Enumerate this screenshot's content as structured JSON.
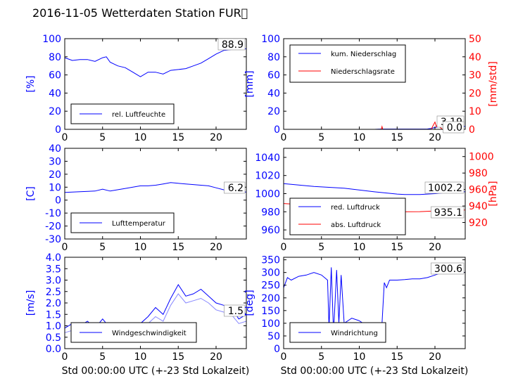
{
  "title": "2016-11-05 Wetterdaten Station FUR\u0000",
  "colors": {
    "blue": "#0000ff",
    "red": "#ff0000",
    "light_blue": "#8888ff",
    "axis": "#000000"
  },
  "chart_data": [
    {
      "type": "line",
      "xlim": [
        0,
        24
      ],
      "ylim": [
        0,
        100
      ],
      "x_ticks": [
        0,
        5,
        10,
        15,
        20
      ],
      "y_ticks": [
        0,
        20,
        40,
        60,
        80,
        100
      ],
      "ylabel": "[%]",
      "xlabel": "",
      "legend": [
        "rel. Luftfeuchte"
      ],
      "legend_position": "lower-left",
      "last_value_label": "88.9",
      "series": [
        {
          "name": "rel. Luftfeuchte",
          "color": "#0000ff",
          "x": [
            0,
            1,
            2,
            3,
            4,
            5,
            5.5,
            6,
            7,
            8,
            9,
            10,
            11,
            12,
            13,
            14,
            15,
            16,
            17,
            18,
            19,
            20,
            21,
            22,
            23,
            24
          ],
          "y": [
            79,
            76,
            77,
            77,
            75,
            79,
            80,
            74,
            70,
            68,
            63,
            58,
            63,
            63,
            61,
            65,
            66,
            67,
            70,
            73,
            78,
            83,
            87,
            88,
            88,
            88.9
          ]
        }
      ]
    },
    {
      "type": "line",
      "xlim": [
        0,
        24
      ],
      "ylim": [
        0,
        100
      ],
      "ylim_right": [
        0,
        50
      ],
      "x_ticks": [
        0,
        5,
        10,
        15,
        20
      ],
      "y_ticks": [
        0,
        20,
        40,
        60,
        80,
        100
      ],
      "y_ticks_right": [
        0,
        10,
        20,
        30,
        40,
        50
      ],
      "ylabel": "[mm]",
      "ylabel_right": "[mm/std]",
      "xlabel": "",
      "legend": [
        "kum. Niederschlag",
        "Niederschlagsrate"
      ],
      "legend_position": "upper-left",
      "last_value_labels": [
        "3.19",
        "0.0"
      ],
      "series": [
        {
          "name": "kum. Niederschlag",
          "color": "#0000ff",
          "axis": "left",
          "x": [
            0,
            12,
            12.5,
            13,
            19,
            19.5,
            20,
            20.5,
            21,
            24
          ],
          "y": [
            0,
            0,
            0.2,
            0.3,
            0.4,
            1.0,
            2.0,
            2.8,
            3.1,
            3.19
          ]
        },
        {
          "name": "Niederschlagsrate",
          "color": "#ff0000",
          "axis": "right",
          "x": [
            0,
            12.9,
            13,
            13.1,
            19.5,
            19.8,
            20.0,
            20.2,
            20.4,
            20.7,
            21,
            24
          ],
          "y": [
            0,
            0,
            1.5,
            0,
            0,
            2.5,
            4.0,
            1.5,
            3.0,
            1.0,
            0,
            0
          ]
        }
      ]
    },
    {
      "type": "line",
      "xlim": [
        0,
        24
      ],
      "ylim": [
        -30,
        40
      ],
      "x_ticks": [
        0,
        5,
        10,
        15,
        20
      ],
      "y_ticks": [
        -30,
        -20,
        -10,
        0,
        10,
        20,
        30,
        40
      ],
      "ylabel": "[C]",
      "xlabel": "",
      "legend": [
        "Lufttemperatur"
      ],
      "legend_position": "lower-left",
      "last_value_label": "6.2",
      "series": [
        {
          "name": "Lufttemperatur",
          "color": "#0000ff",
          "x": [
            0,
            2,
            4,
            5,
            6,
            8,
            10,
            11,
            12,
            13,
            14,
            15,
            16,
            17,
            18,
            19,
            20,
            21,
            22,
            24
          ],
          "y": [
            6,
            6.5,
            7,
            8.5,
            7,
            9,
            11,
            11,
            11.5,
            12.5,
            13.5,
            13,
            12.5,
            12,
            11.5,
            11,
            9.5,
            8,
            7,
            6.2
          ]
        }
      ]
    },
    {
      "type": "line",
      "xlim": [
        0,
        24
      ],
      "ylim": [
        950,
        1050
      ],
      "ylim_right": [
        900,
        1010
      ],
      "x_ticks": [
        0,
        5,
        10,
        15,
        20
      ],
      "y_ticks": [
        960,
        980,
        1000,
        1020,
        1040
      ],
      "y_ticks_right": [
        920,
        940,
        960,
        980,
        1000
      ],
      "ylabel": "",
      "ylabel_right": "[hPa]",
      "xlabel": "",
      "legend": [
        "red. Luftdruck",
        "abs. Luftdruck"
      ],
      "legend_position": "lower-left",
      "last_value_labels": [
        "1002.2",
        "935.1"
      ],
      "series": [
        {
          "name": "red. Luftdruck",
          "color": "#0000ff",
          "axis": "left",
          "x": [
            0,
            4,
            8,
            12,
            15,
            16,
            18,
            20,
            22,
            24
          ],
          "y": [
            1011,
            1008,
            1006,
            1002,
            999.5,
            999,
            999,
            1000,
            1001.5,
            1002.2
          ]
        },
        {
          "name": "abs. Luftdruck",
          "color": "#ff0000",
          "axis": "right",
          "x": [
            0,
            4,
            8,
            12,
            15,
            16,
            18,
            20,
            22,
            24
          ],
          "y": [
            943,
            941,
            939,
            936,
            933.5,
            933,
            933.2,
            934,
            934.8,
            935.1
          ]
        }
      ]
    },
    {
      "type": "line",
      "xlim": [
        0,
        24
      ],
      "ylim": [
        0,
        4
      ],
      "x_ticks": [
        0,
        5,
        10,
        15,
        20
      ],
      "y_ticks": [
        0.0,
        0.5,
        1.0,
        1.5,
        2.0,
        2.5,
        3.0,
        3.5,
        4.0
      ],
      "ylabel": "[m/s]",
      "xlabel": "Std 00:00:00 UTC (+-23 Std Lokalzeit)",
      "legend": [
        "Windgeschwindigkeit"
      ],
      "legend_position": "lower-left",
      "last_value_label": "1.5",
      "series": [
        {
          "name": "Windgeschwindigkeit",
          "color": "#0000ff",
          "x": [
            0,
            1,
            2,
            3,
            4,
            5,
            6,
            7,
            8,
            9,
            10,
            11,
            12,
            13,
            14,
            15,
            16,
            17,
            18,
            19,
            20,
            21,
            22,
            23,
            24
          ],
          "y": [
            0.9,
            1.1,
            1.0,
            1.2,
            0.9,
            1.3,
            0.9,
            0.7,
            1.0,
            0.9,
            1.1,
            1.4,
            1.8,
            1.5,
            2.2,
            2.8,
            2.3,
            2.4,
            2.6,
            2.3,
            2.0,
            1.9,
            1.8,
            1.3,
            1.5
          ]
        },
        {
          "name": "",
          "color": "#8888ff",
          "x": [
            0,
            1,
            2,
            3,
            4,
            5,
            6,
            7,
            8,
            9,
            10,
            11,
            12,
            13,
            14,
            15,
            16,
            17,
            18,
            19,
            20,
            21,
            22,
            23,
            24
          ],
          "y": [
            0.7,
            0.8,
            0.7,
            0.9,
            0.6,
            1.0,
            0.7,
            0.5,
            0.7,
            0.7,
            0.9,
            1.1,
            1.4,
            1.2,
            1.9,
            2.4,
            2.0,
            2.1,
            2.2,
            2.0,
            1.7,
            1.6,
            1.5,
            1.1,
            1.2
          ]
        }
      ]
    },
    {
      "type": "line",
      "xlim": [
        0,
        24
      ],
      "ylim": [
        0,
        360
      ],
      "x_ticks": [
        0,
        5,
        10,
        15,
        20
      ],
      "y_ticks": [
        0,
        50,
        100,
        150,
        200,
        250,
        300,
        350
      ],
      "ylabel": "[deg]",
      "xlabel": "Std 00:00:00 UTC (+-23 Std Lokalzeit)",
      "legend": [
        "Windrichtung"
      ],
      "legend_position": "lower-left",
      "last_value_label": "300.6",
      "series": [
        {
          "name": "Windrichtung",
          "color": "#0000ff",
          "x": [
            0,
            0.5,
            1,
            2,
            3,
            4,
            5,
            5.8,
            6,
            6.3,
            6.6,
            7,
            7.3,
            7.6,
            8,
            9,
            10,
            11,
            12,
            12.5,
            13,
            13.3,
            13.6,
            14,
            15,
            16,
            17,
            18,
            19,
            20,
            21,
            22,
            23,
            24
          ],
          "y": [
            240,
            280,
            270,
            285,
            290,
            300,
            290,
            270,
            80,
            320,
            60,
            310,
            100,
            290,
            100,
            120,
            110,
            90,
            100,
            80,
            100,
            260,
            240,
            270,
            270,
            272,
            275,
            275,
            280,
            290,
            300,
            295,
            298,
            300.6
          ]
        }
      ]
    }
  ]
}
